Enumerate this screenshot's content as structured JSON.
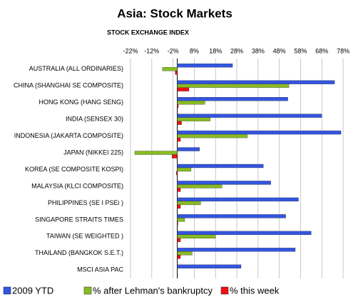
{
  "chart_data": {
    "type": "bar",
    "orientation": "horizontal",
    "title": "Asia: Stock Markets",
    "subtitle": "STOCK EXCHANGE INDEX",
    "categories": [
      "AUSTRALIA (ALL ORDINARIES)",
      "CHINA (SHANGHAI SE COMPOSITE)",
      "HONG KONG (HANG SENG)",
      "INDIA (SENSEX 30)",
      "INDONESIA (JAKARTA COMPOSITE)",
      "JAPAN (NIKKEI 225)",
      "KOREA (SE COMPOSITE KOSPI)",
      "MALAYSIA (KLCI COMPOSITE)",
      "PHILIPPINES (SE I PSEi )",
      "SINGAPORE STRAITS TIMES",
      "TAIWAN (SE WEIGHTED )",
      "THAILAND (BANGKOK S.E.T.)",
      "MSCI ASIA PAC"
    ],
    "series": [
      {
        "name": "2009 YTD",
        "color": "#3355dd",
        "values": [
          26,
          74,
          52,
          68,
          77,
          10.5,
          40.5,
          44,
          57,
          51,
          63,
          55.5,
          30
        ]
      },
      {
        "name": "% after Lehman's bankruptcy",
        "color": "#88bb22",
        "values": [
          -7,
          52.5,
          13,
          15.5,
          33,
          -20,
          6.5,
          21,
          11,
          3.5,
          18,
          7,
          null
        ]
      },
      {
        "name": "% this week",
        "color": "#ee1111",
        "values": [
          -1,
          5.5,
          0.5,
          2,
          1.5,
          -2.5,
          -0.5,
          1.5,
          1.5,
          0.3,
          1.5,
          1.5,
          null
        ]
      }
    ],
    "xlim": [
      -22,
      82
    ],
    "xticks": [
      {
        "value": -22,
        "label": "-22%"
      },
      {
        "value": -12,
        "label": "-12%"
      },
      {
        "value": -2,
        "label": "-2%"
      },
      {
        "value": 8,
        "label": "8%"
      },
      {
        "value": 18,
        "label": "18%"
      },
      {
        "value": 28,
        "label": "28%"
      },
      {
        "value": 38,
        "label": "38%"
      },
      {
        "value": 48,
        "label": "48%"
      },
      {
        "value": 58,
        "label": "58%"
      },
      {
        "value": 68,
        "label": "68%"
      },
      {
        "value": 78,
        "label": "78%"
      }
    ],
    "grid": true,
    "legend": "bottom"
  }
}
